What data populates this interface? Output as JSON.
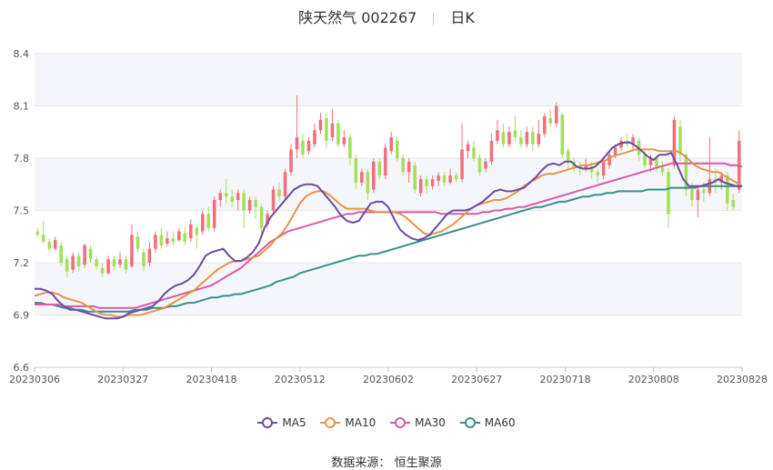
{
  "header": {
    "stock_name": "陕天然气 002267",
    "period": "日K"
  },
  "footer": {
    "source_label": "数据来源：",
    "source_name": "恒生聚源"
  },
  "colors": {
    "up": "#f16f7f",
    "down": "#a3e05a",
    "ma5": "#6d4aa5",
    "ma10": "#e3954a",
    "ma30": "#d85aa8",
    "ma60": "#3a8f8b",
    "grid": "#e6e6e6",
    "band": "#f5f6fa"
  },
  "chart_data": {
    "type": "candlestick",
    "title": "陕天然气 002267 日K",
    "ylim": [
      6.6,
      8.4
    ],
    "yticks": [
      6.6,
      6.9,
      7.2,
      7.5,
      7.8,
      8.1,
      8.4
    ],
    "xtick_labels": [
      "20230306",
      "20230327",
      "20230418",
      "20230512",
      "20230602",
      "20230627",
      "20230718",
      "20230808",
      "20230828"
    ],
    "xtick_index": [
      0,
      15,
      30,
      45,
      60,
      75,
      90,
      105,
      120
    ],
    "legend": [
      "MA5",
      "MA10",
      "MA30",
      "MA60"
    ],
    "legend_position": "bottom",
    "candles": [
      [
        7.38,
        7.36,
        7.4,
        7.34
      ],
      [
        7.36,
        7.32,
        7.44,
        7.31
      ],
      [
        7.32,
        7.28,
        7.34,
        7.26
      ],
      [
        7.28,
        7.33,
        7.35,
        7.27
      ],
      [
        7.3,
        7.2,
        7.32,
        7.18
      ],
      [
        7.22,
        7.15,
        7.24,
        7.12
      ],
      [
        7.16,
        7.24,
        7.26,
        7.14
      ],
      [
        7.24,
        7.18,
        7.26,
        7.15
      ],
      [
        7.19,
        7.3,
        7.31,
        7.17
      ],
      [
        7.28,
        7.22,
        7.3,
        7.2
      ],
      [
        7.22,
        7.18,
        7.24,
        7.16
      ],
      [
        7.17,
        7.14,
        7.2,
        7.12
      ],
      [
        7.14,
        7.22,
        7.24,
        7.13
      ],
      [
        7.22,
        7.18,
        7.24,
        7.16
      ],
      [
        7.19,
        7.22,
        7.26,
        7.17
      ],
      [
        7.22,
        7.16,
        7.24,
        7.14
      ],
      [
        7.18,
        7.36,
        7.42,
        7.17
      ],
      [
        7.35,
        7.28,
        7.38,
        7.26
      ],
      [
        7.26,
        7.18,
        7.28,
        7.15
      ],
      [
        7.2,
        7.28,
        7.32,
        7.18
      ],
      [
        7.28,
        7.36,
        7.38,
        7.26
      ],
      [
        7.36,
        7.3,
        7.4,
        7.28
      ],
      [
        7.31,
        7.34,
        7.38,
        7.29
      ],
      [
        7.34,
        7.32,
        7.38,
        7.3
      ],
      [
        7.33,
        7.38,
        7.4,
        7.32
      ],
      [
        7.37,
        7.32,
        7.4,
        7.3
      ],
      [
        7.34,
        7.42,
        7.45,
        7.32
      ],
      [
        7.4,
        7.36,
        7.42,
        7.28
      ],
      [
        7.38,
        7.48,
        7.5,
        7.36
      ],
      [
        7.48,
        7.4,
        7.52,
        7.38
      ],
      [
        7.4,
        7.56,
        7.58,
        7.38
      ],
      [
        7.56,
        7.6,
        7.62,
        7.52
      ],
      [
        7.6,
        7.58,
        7.68,
        7.54
      ],
      [
        7.58,
        7.55,
        7.62,
        7.52
      ],
      [
        7.56,
        7.6,
        7.62,
        7.5
      ],
      [
        7.6,
        7.5,
        7.62,
        7.4
      ],
      [
        7.5,
        7.56,
        7.58,
        7.48
      ],
      [
        7.56,
        7.52,
        7.58,
        7.45
      ],
      [
        7.52,
        7.4,
        7.54,
        7.36
      ],
      [
        7.42,
        7.48,
        7.5,
        7.4
      ],
      [
        7.5,
        7.62,
        7.64,
        7.48
      ],
      [
        7.62,
        7.58,
        7.66,
        7.55
      ],
      [
        7.58,
        7.72,
        7.74,
        7.56
      ],
      [
        7.72,
        7.85,
        7.88,
        7.7
      ],
      [
        7.85,
        7.92,
        8.16,
        7.8
      ],
      [
        7.9,
        7.82,
        7.94,
        7.8
      ],
      [
        7.84,
        7.9,
        7.92,
        7.82
      ],
      [
        7.88,
        7.96,
        8.0,
        7.86
      ],
      [
        7.96,
        8.02,
        8.06,
        7.94
      ],
      [
        8.03,
        7.9,
        8.06,
        7.86
      ],
      [
        7.92,
        8.0,
        8.08,
        7.9
      ],
      [
        8.0,
        7.88,
        8.02,
        7.86
      ],
      [
        7.88,
        7.92,
        7.96,
        7.86
      ],
      [
        7.92,
        7.8,
        7.94,
        7.76
      ],
      [
        7.8,
        7.66,
        7.82,
        7.62
      ],
      [
        7.66,
        7.72,
        7.74,
        7.64
      ],
      [
        7.72,
        7.6,
        7.74,
        7.56
      ],
      [
        7.62,
        7.78,
        7.8,
        7.6
      ],
      [
        7.78,
        7.7,
        7.8,
        7.68
      ],
      [
        7.7,
        7.86,
        7.88,
        7.68
      ],
      [
        7.84,
        7.92,
        7.95,
        7.82
      ],
      [
        7.9,
        7.8,
        7.92,
        7.78
      ],
      [
        7.8,
        7.72,
        7.82,
        7.7
      ],
      [
        7.72,
        7.78,
        7.8,
        7.66
      ],
      [
        7.76,
        7.62,
        7.78,
        7.6
      ],
      [
        7.6,
        7.68,
        7.7,
        7.58
      ],
      [
        7.68,
        7.64,
        7.7,
        7.6
      ],
      [
        7.64,
        7.68,
        7.7,
        7.62
      ],
      [
        7.67,
        7.7,
        7.72,
        7.64
      ],
      [
        7.7,
        7.66,
        7.72,
        7.64
      ],
      [
        7.66,
        7.7,
        7.74,
        7.65
      ],
      [
        7.7,
        7.68,
        7.72,
        7.66
      ],
      [
        7.68,
        7.85,
        8.0,
        7.66
      ],
      [
        7.84,
        7.88,
        7.9,
        7.8
      ],
      [
        7.86,
        7.8,
        7.9,
        7.78
      ],
      [
        7.8,
        7.72,
        7.82,
        7.7
      ],
      [
        7.74,
        7.78,
        7.8,
        7.72
      ],
      [
        7.78,
        7.9,
        7.94,
        7.76
      ],
      [
        7.9,
        7.96,
        8.02,
        7.88
      ],
      [
        7.95,
        7.88,
        8.0,
        7.86
      ],
      [
        7.88,
        7.95,
        7.98,
        7.86
      ],
      [
        7.96,
        7.92,
        8.04,
        7.9
      ],
      [
        7.92,
        7.88,
        7.96,
        7.86
      ],
      [
        7.88,
        7.95,
        7.98,
        7.86
      ],
      [
        7.95,
        7.88,
        7.98,
        7.84
      ],
      [
        7.88,
        7.94,
        8.02,
        7.86
      ],
      [
        7.94,
        8.04,
        8.06,
        7.92
      ],
      [
        8.03,
        8.0,
        8.08,
        7.98
      ],
      [
        8.0,
        8.1,
        8.12,
        7.98
      ],
      [
        8.05,
        7.82,
        8.06,
        7.8
      ],
      [
        7.84,
        7.78,
        7.86,
        7.74
      ],
      [
        7.78,
        7.74,
        7.8,
        7.72
      ],
      [
        7.76,
        7.74,
        7.78,
        7.7
      ],
      [
        7.74,
        7.76,
        7.8,
        7.72
      ],
      [
        7.75,
        7.72,
        7.78,
        7.68
      ],
      [
        7.72,
        7.7,
        7.74,
        7.66
      ],
      [
        7.7,
        7.78,
        7.8,
        7.68
      ],
      [
        7.76,
        7.82,
        7.84,
        7.74
      ],
      [
        7.82,
        7.86,
        7.88,
        7.8
      ],
      [
        7.86,
        7.9,
        7.92,
        7.84
      ],
      [
        7.9,
        7.88,
        7.94,
        7.86
      ],
      [
        7.88,
        7.92,
        7.94,
        7.84
      ],
      [
        7.9,
        7.82,
        7.92,
        7.78
      ],
      [
        7.82,
        7.76,
        7.84,
        7.74
      ],
      [
        7.76,
        7.8,
        7.82,
        7.72
      ],
      [
        7.8,
        7.74,
        7.82,
        7.72
      ],
      [
        7.75,
        7.72,
        7.78,
        7.7
      ],
      [
        7.72,
        7.48,
        7.74,
        7.4
      ],
      [
        7.76,
        8.02,
        8.04,
        7.74
      ],
      [
        7.98,
        7.82,
        8.02,
        7.78
      ],
      [
        7.82,
        7.62,
        7.84,
        7.58
      ],
      [
        7.62,
        7.56,
        7.66,
        7.52
      ],
      [
        7.56,
        7.62,
        7.64,
        7.46
      ],
      [
        7.62,
        7.6,
        7.66,
        7.55
      ],
      [
        7.6,
        7.68,
        7.92,
        7.58
      ],
      [
        7.68,
        7.66,
        7.74,
        7.6
      ],
      [
        7.66,
        7.7,
        7.72,
        7.62
      ],
      [
        7.7,
        7.54,
        7.72,
        7.5
      ],
      [
        7.56,
        7.52,
        7.6,
        7.5
      ],
      [
        7.62,
        7.9,
        7.96,
        7.6
      ]
    ],
    "ma5": [
      7.05,
      7.05,
      7.04,
      7.02,
      6.98,
      6.95,
      6.93,
      6.93,
      6.92,
      6.91,
      6.9,
      6.89,
      6.88,
      6.88,
      6.88,
      6.89,
      6.91,
      6.92,
      6.93,
      6.94,
      6.95,
      6.98,
      7.02,
      7.05,
      7.07,
      7.08,
      7.1,
      7.13,
      7.18,
      7.24,
      7.26,
      7.27,
      7.28,
      7.24,
      7.21,
      7.21,
      7.23,
      7.26,
      7.31,
      7.4,
      7.46,
      7.5,
      7.54,
      7.58,
      7.62,
      7.64,
      7.65,
      7.65,
      7.64,
      7.6,
      7.56,
      7.52,
      7.47,
      7.44,
      7.43,
      7.44,
      7.49,
      7.54,
      7.55,
      7.55,
      7.52,
      7.45,
      7.39,
      7.36,
      7.34,
      7.33,
      7.34,
      7.36,
      7.4,
      7.44,
      7.48,
      7.5,
      7.5,
      7.5,
      7.51,
      7.53,
      7.55,
      7.58,
      7.61,
      7.62,
      7.61,
      7.61,
      7.62,
      7.63,
      7.66,
      7.69,
      7.73,
      7.76,
      7.77,
      7.76,
      7.78,
      7.78,
      7.75,
      7.74,
      7.74,
      7.75,
      7.78,
      7.82,
      7.86,
      7.88,
      7.89,
      7.89,
      7.87,
      7.84,
      7.81,
      7.79,
      7.82,
      7.82,
      7.83,
      7.76,
      7.68,
      7.64,
      7.64,
      7.64,
      7.65,
      7.66,
      7.68,
      7.66,
      7.65,
      7.64,
      7.64
    ],
    "ma10": [
      7.01,
      7.02,
      7.03,
      7.03,
      7.02,
      7.0,
      6.99,
      6.98,
      6.97,
      6.95,
      6.93,
      6.91,
      6.9,
      6.9,
      6.89,
      6.89,
      6.9,
      6.9,
      6.9,
      6.91,
      6.92,
      6.93,
      6.94,
      6.96,
      6.98,
      7.0,
      7.02,
      7.04,
      7.07,
      7.1,
      7.13,
      7.16,
      7.18,
      7.2,
      7.21,
      7.21,
      7.22,
      7.23,
      7.24,
      7.27,
      7.3,
      7.34,
      7.37,
      7.42,
      7.48,
      7.54,
      7.58,
      7.6,
      7.61,
      7.61,
      7.59,
      7.56,
      7.53,
      7.51,
      7.51,
      7.51,
      7.51,
      7.5,
      7.49,
      7.49,
      7.49,
      7.49,
      7.48,
      7.46,
      7.43,
      7.4,
      7.37,
      7.36,
      7.37,
      7.38,
      7.4,
      7.42,
      7.45,
      7.48,
      7.51,
      7.53,
      7.54,
      7.55,
      7.56,
      7.56,
      7.57,
      7.59,
      7.61,
      7.64,
      7.66,
      7.68,
      7.7,
      7.71,
      7.71,
      7.72,
      7.73,
      7.74,
      7.75,
      7.76,
      7.76,
      7.77,
      7.78,
      7.79,
      7.81,
      7.82,
      7.83,
      7.84,
      7.85,
      7.85,
      7.85,
      7.85,
      7.84,
      7.84,
      7.84,
      7.84,
      7.82,
      7.79,
      7.76,
      7.74,
      7.73,
      7.72,
      7.72,
      7.7,
      7.68,
      7.66,
      7.64
    ],
    "ma30": [
      6.96,
      6.96,
      6.96,
      6.96,
      6.96,
      6.95,
      6.95,
      6.95,
      6.95,
      6.95,
      6.95,
      6.94,
      6.94,
      6.94,
      6.94,
      6.94,
      6.94,
      6.94,
      6.95,
      6.96,
      6.97,
      6.98,
      6.99,
      7.0,
      7.01,
      7.02,
      7.03,
      7.04,
      7.05,
      7.06,
      7.07,
      7.09,
      7.11,
      7.13,
      7.15,
      7.17,
      7.2,
      7.23,
      7.26,
      7.29,
      7.32,
      7.34,
      7.36,
      7.38,
      7.39,
      7.4,
      7.41,
      7.42,
      7.43,
      7.44,
      7.45,
      7.46,
      7.47,
      7.48,
      7.48,
      7.49,
      7.49,
      7.49,
      7.49,
      7.49,
      7.49,
      7.49,
      7.49,
      7.49,
      7.49,
      7.49,
      7.49,
      7.49,
      7.49,
      7.48,
      7.48,
      7.48,
      7.48,
      7.48,
      7.48,
      7.48,
      7.49,
      7.49,
      7.5,
      7.5,
      7.51,
      7.51,
      7.52,
      7.52,
      7.53,
      7.54,
      7.55,
      7.56,
      7.57,
      7.58,
      7.59,
      7.6,
      7.61,
      7.62,
      7.63,
      7.64,
      7.65,
      7.66,
      7.67,
      7.68,
      7.69,
      7.7,
      7.71,
      7.72,
      7.73,
      7.74,
      7.75,
      7.76,
      7.77,
      7.77,
      7.77,
      7.77,
      7.77,
      7.77,
      7.77,
      7.77,
      7.77,
      7.77,
      7.76,
      7.76,
      7.75
    ],
    "ma60": [
      6.97,
      6.97,
      6.96,
      6.96,
      6.95,
      6.94,
      6.94,
      6.93,
      6.93,
      6.92,
      6.92,
      6.92,
      6.92,
      6.92,
      6.92,
      6.92,
      6.92,
      6.93,
      6.93,
      6.93,
      6.94,
      6.94,
      6.94,
      6.95,
      6.95,
      6.96,
      6.97,
      6.97,
      6.98,
      6.99,
      7.0,
      7.0,
      7.01,
      7.01,
      7.02,
      7.02,
      7.03,
      7.04,
      7.05,
      7.06,
      7.07,
      7.09,
      7.1,
      7.11,
      7.12,
      7.14,
      7.15,
      7.16,
      7.17,
      7.18,
      7.19,
      7.2,
      7.21,
      7.22,
      7.23,
      7.24,
      7.24,
      7.25,
      7.25,
      7.26,
      7.27,
      7.28,
      7.29,
      7.3,
      7.31,
      7.32,
      7.33,
      7.34,
      7.35,
      7.36,
      7.37,
      7.38,
      7.39,
      7.4,
      7.41,
      7.42,
      7.43,
      7.44,
      7.45,
      7.46,
      7.47,
      7.48,
      7.49,
      7.5,
      7.51,
      7.52,
      7.52,
      7.53,
      7.54,
      7.55,
      7.55,
      7.56,
      7.57,
      7.58,
      7.58,
      7.59,
      7.59,
      7.6,
      7.6,
      7.61,
      7.61,
      7.61,
      7.61,
      7.61,
      7.62,
      7.62,
      7.62,
      7.62,
      7.63,
      7.63,
      7.63,
      7.63,
      7.63,
      7.64,
      7.64,
      7.64,
      7.64,
      7.64,
      7.64,
      7.64,
      7.64
    ]
  }
}
